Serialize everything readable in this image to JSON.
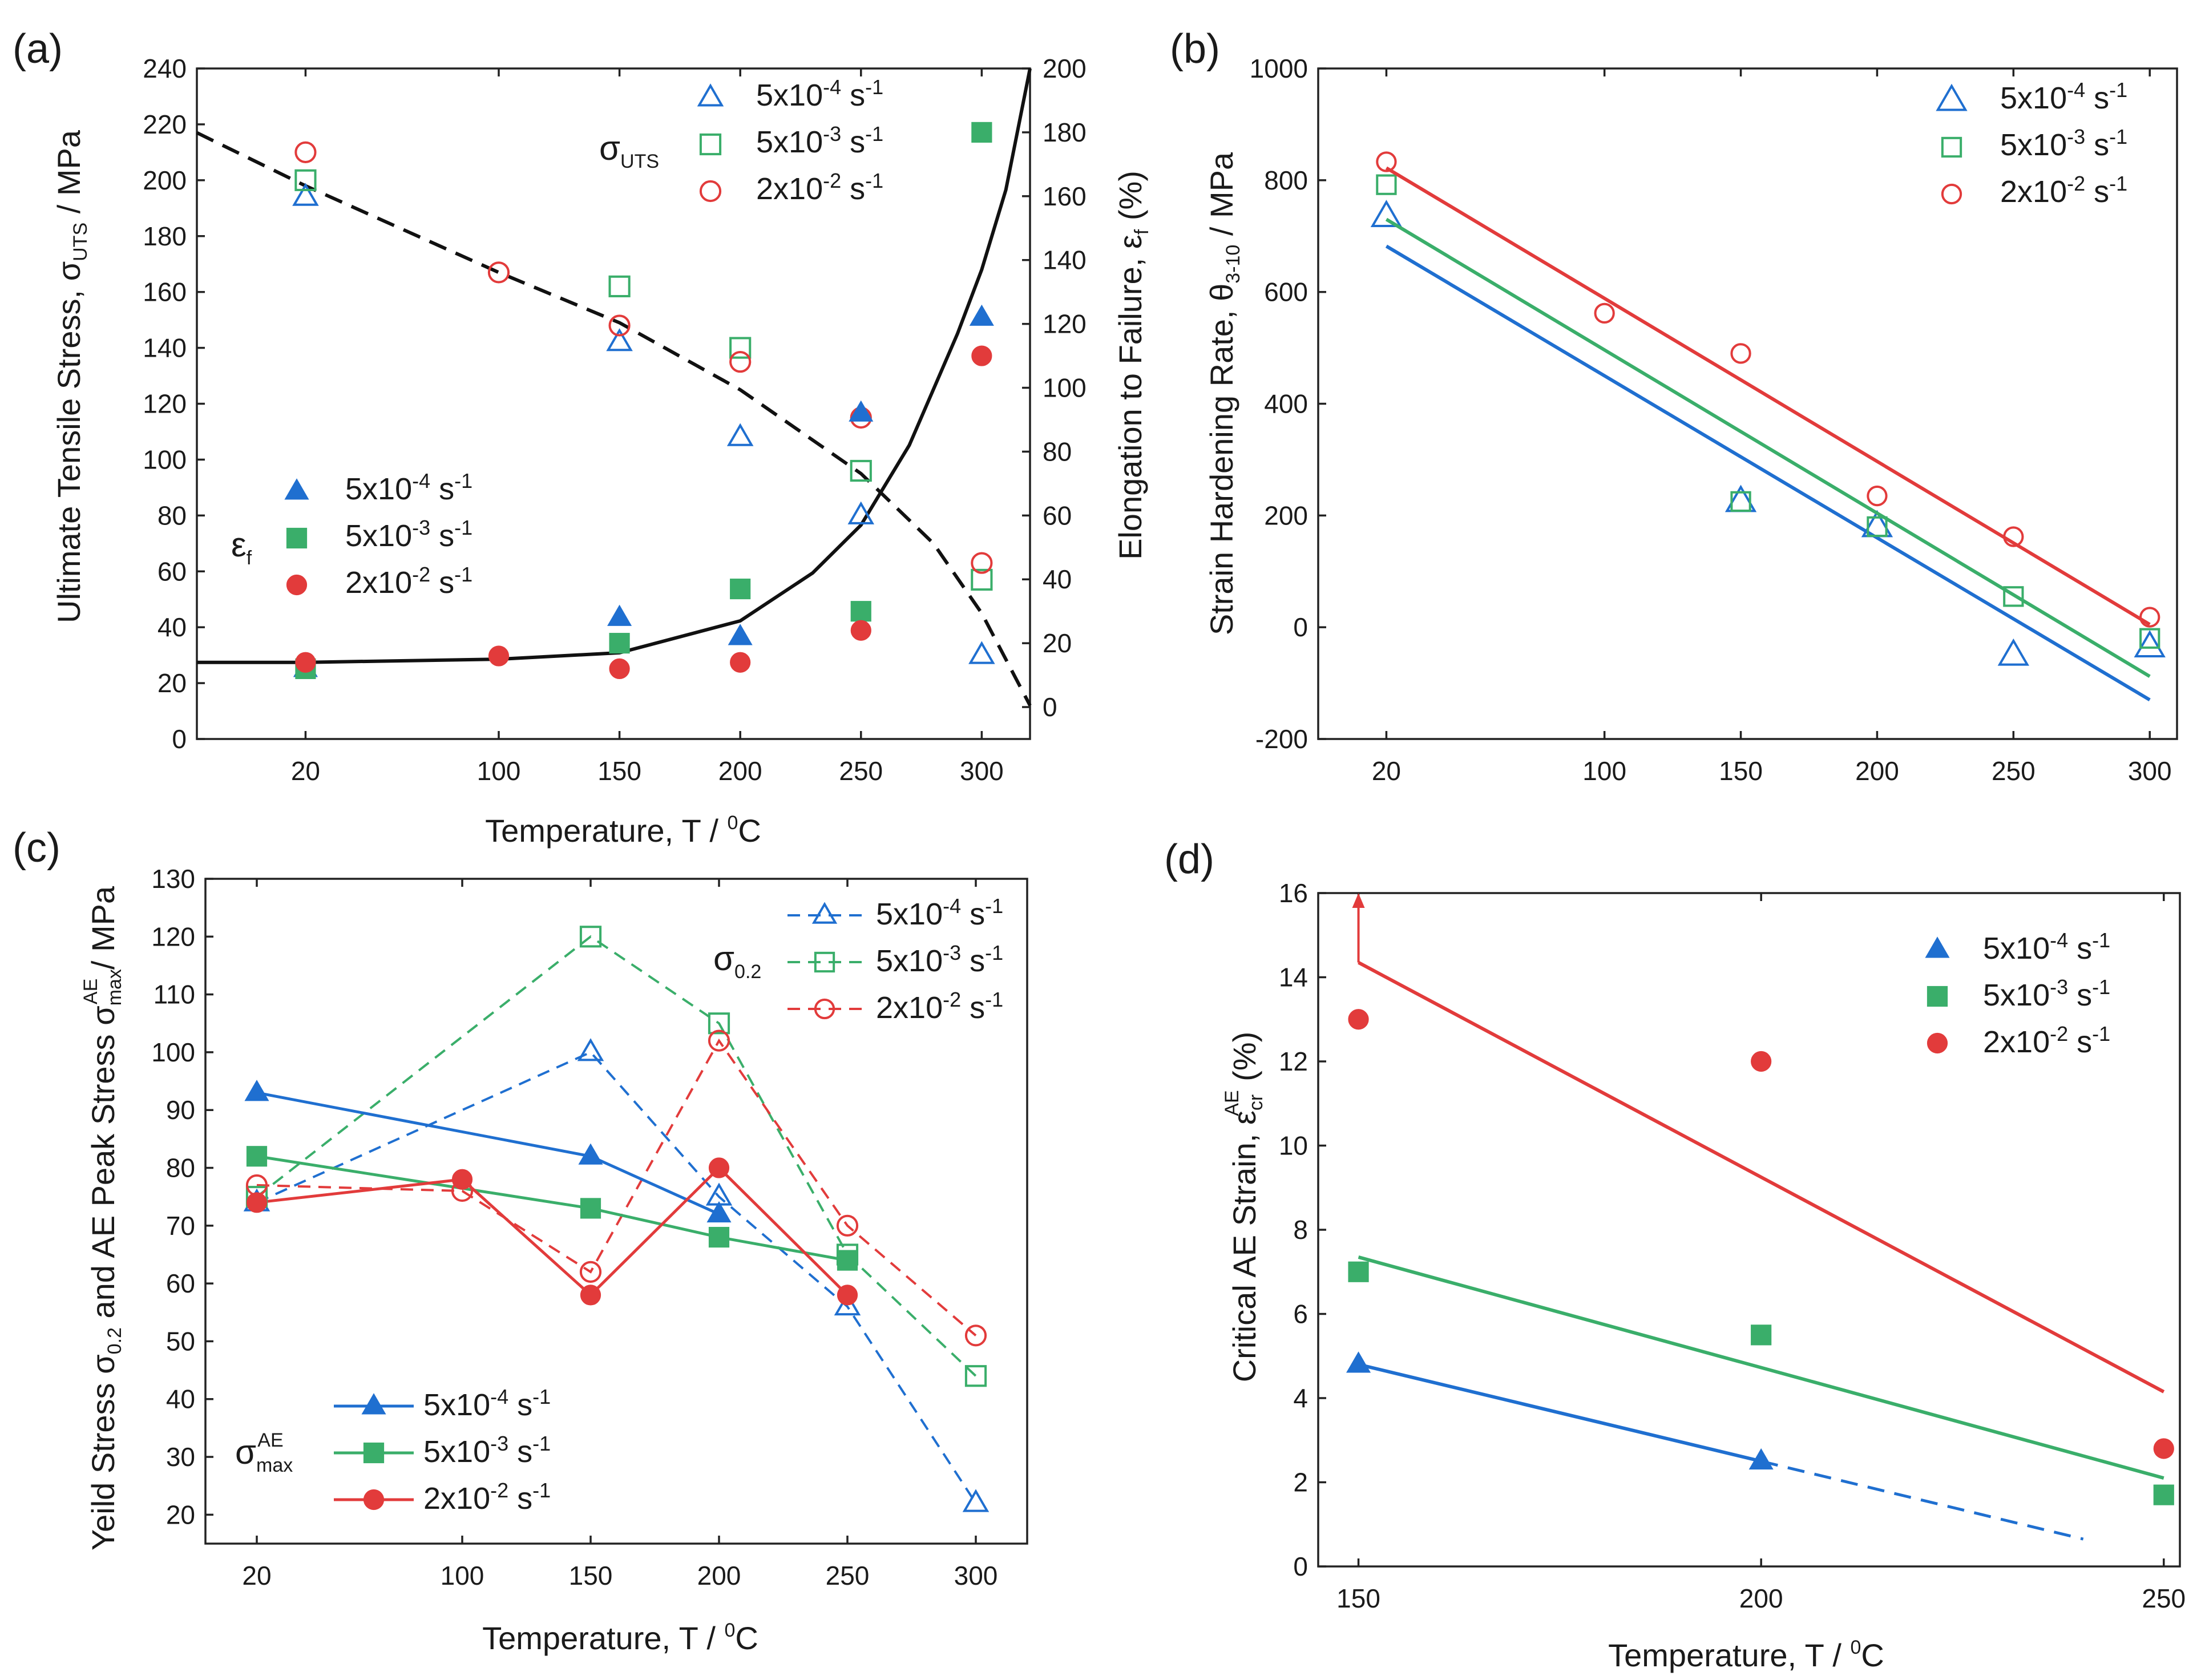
{
  "colors": {
    "blue": "#1F6FD0",
    "green": "#3AAE6A",
    "red": "#E23B3B",
    "black": "#111111",
    "frame": "#222222"
  },
  "chart_data": [
    {
      "panel": "(a)",
      "type": "scatter",
      "x_categories": [
        "20",
        "100",
        "150",
        "200",
        "250",
        "300"
      ],
      "x_positions": [
        20,
        100,
        150,
        200,
        250,
        300
      ],
      "xlabel": "Temperature, T / ⁰C",
      "ylabel_left": "Ultimate Tensile Stress, σUTS / MPa",
      "ylabel_right": "Elongation to Failure, εf (%)",
      "ylim_left": [
        0,
        240
      ],
      "yticks_left": [
        0,
        20,
        40,
        60,
        80,
        100,
        120,
        140,
        160,
        180,
        200,
        220,
        240
      ],
      "ylim_right": [
        -10,
        200
      ],
      "yticks_right": [
        0,
        20,
        40,
        60,
        80,
        100,
        120,
        140,
        160,
        180,
        200
      ],
      "xlim": [
        -25,
        320
      ],
      "legend_uts_label": "σUTS",
      "legend_ef_label": "εf",
      "uts_series": [
        {
          "name": "5x10⁻⁴ s⁻¹",
          "marker": "open-triangle",
          "color": "#1F6FD0",
          "x": [
            20,
            150,
            200,
            250,
            300
          ],
          "y": [
            194,
            142,
            108,
            80,
            30
          ]
        },
        {
          "name": "5x10⁻³ s⁻¹",
          "marker": "open-square",
          "color": "#3AAE6A",
          "x": [
            20,
            150,
            200,
            250,
            300
          ],
          "y": [
            200,
            162,
            140,
            96,
            57
          ]
        },
        {
          "name": "2x10⁻² s⁻¹",
          "marker": "open-circle",
          "color": "#E23B3B",
          "x": [
            20,
            100,
            150,
            200,
            250,
            300
          ],
          "y": [
            210,
            167,
            148,
            135,
            115,
            63
          ]
        }
      ],
      "ef_series": [
        {
          "name": "5x10⁻⁴ s⁻¹",
          "marker": "filled-triangle",
          "color": "#1F6FD0",
          "x": [
            20,
            150,
            200,
            250,
            300
          ],
          "y": [
            12,
            28,
            22,
            92,
            122
          ]
        },
        {
          "name": "5x10⁻³ s⁻¹",
          "marker": "filled-square",
          "color": "#3AAE6A",
          "x": [
            20,
            150,
            200,
            250,
            300
          ],
          "y": [
            12,
            20,
            37,
            30,
            180
          ]
        },
        {
          "name": "2x10⁻² s⁻¹",
          "marker": "filled-circle",
          "color": "#E23B3B",
          "x": [
            20,
            100,
            150,
            200,
            250,
            300
          ],
          "y": [
            14,
            16,
            12,
            14,
            24,
            110
          ]
        }
      ],
      "trend_uts_dashed": {
        "x": [
          -25,
          20,
          100,
          150,
          200,
          250,
          280,
          300,
          320
        ],
        "y": [
          217,
          198,
          167,
          149,
          125,
          95,
          70,
          45,
          12
        ]
      },
      "trend_ef_solid": {
        "x": [
          -25,
          20,
          100,
          150,
          200,
          230,
          250,
          270,
          290,
          300,
          310,
          320
        ],
        "y": [
          14,
          14,
          15,
          17,
          27,
          42,
          57,
          82,
          117,
          137,
          162,
          200
        ]
      }
    },
    {
      "panel": "(b)",
      "type": "scatter",
      "x_categories": [
        "20",
        "100",
        "150",
        "200",
        "250",
        "300"
      ],
      "x_positions": [
        20,
        100,
        150,
        200,
        250,
        300
      ],
      "xlabel": "",
      "ylabel": "Strain Hardening Rate, θ3-10 / MPa",
      "ylim": [
        -200,
        1000
      ],
      "yticks": [
        -200,
        0,
        200,
        400,
        600,
        800,
        1000
      ],
      "xlim": [
        -5,
        310
      ],
      "series": [
        {
          "name": "5x10⁻⁴ s⁻¹",
          "marker": "open-triangle",
          "color": "#1F6FD0",
          "x": [
            20,
            150,
            200,
            250,
            300
          ],
          "y": [
            735,
            225,
            180,
            -50,
            -35
          ],
          "fit": [
            [
              20,
              682
            ],
            [
              300,
              -130
            ]
          ]
        },
        {
          "name": "5x10⁻³ s⁻¹",
          "marker": "open-square",
          "color": "#3AAE6A",
          "x": [
            20,
            150,
            200,
            250,
            300
          ],
          "y": [
            792,
            225,
            180,
            55,
            -20
          ],
          "fit": [
            [
              20,
              730
            ],
            [
              300,
              -88
            ]
          ]
        },
        {
          "name": "2x10⁻² s⁻¹",
          "marker": "open-circle",
          "color": "#E23B3B",
          "x": [
            20,
            100,
            150,
            200,
            250,
            300
          ],
          "y": [
            833,
            562,
            490,
            235,
            162,
            18
          ],
          "fit": [
            [
              20,
              822
            ],
            [
              300,
              5
            ]
          ]
        }
      ]
    },
    {
      "panel": "(c)",
      "type": "line",
      "x_categories": [
        "20",
        "100",
        "150",
        "200",
        "250",
        "300"
      ],
      "x_positions": [
        20,
        100,
        150,
        200,
        250,
        300
      ],
      "xlabel": "Temperature, T / ⁰C",
      "ylabel": "Yeild Stress σ0.2 and AE Peak Stress σmaxAE / MPa",
      "ylim": [
        15,
        130
      ],
      "yticks": [
        20,
        30,
        40,
        50,
        60,
        70,
        80,
        90,
        100,
        110,
        120,
        130
      ],
      "xlim": [
        0,
        320
      ],
      "legend_sigma02_label": "σ0.2",
      "legend_sigmamax_label": "σmaxAE",
      "sigma02_series": [
        {
          "name": "5x10⁻⁴ s⁻¹",
          "marker": "open-triangle",
          "color": "#1F6FD0",
          "x": [
            20,
            150,
            200,
            250,
            300
          ],
          "y": [
            74,
            100,
            75,
            56,
            22
          ]
        },
        {
          "name": "5x10⁻³ s⁻¹",
          "marker": "open-square",
          "color": "#3AAE6A",
          "x": [
            20,
            150,
            200,
            250,
            300
          ],
          "y": [
            75,
            120,
            105,
            65,
            44
          ]
        },
        {
          "name": "2x10⁻² s⁻¹",
          "marker": "open-circle",
          "color": "#E23B3B",
          "x": [
            20,
            100,
            150,
            200,
            250,
            300
          ],
          "y": [
            77,
            76,
            62,
            102,
            70,
            51
          ]
        }
      ],
      "sigmamax_series": [
        {
          "name": "5x10⁻⁴ s⁻¹",
          "marker": "filled-triangle",
          "color": "#1F6FD0",
          "x": [
            20,
            150,
            200
          ],
          "y": [
            93,
            82,
            72
          ]
        },
        {
          "name": "5x10⁻³ s⁻¹",
          "marker": "filled-square",
          "color": "#3AAE6A",
          "x": [
            20,
            150,
            200,
            250
          ],
          "y": [
            82,
            73,
            68,
            64
          ]
        },
        {
          "name": "2x10⁻² s⁻¹",
          "marker": "filled-circle",
          "color": "#E23B3B",
          "x": [
            20,
            100,
            150,
            200,
            250
          ],
          "y": [
            74,
            78,
            58,
            80,
            58
          ]
        }
      ]
    },
    {
      "panel": "(d)",
      "type": "scatter",
      "x_categories": [
        "150",
        "200",
        "250"
      ],
      "x_positions": [
        150,
        200,
        250
      ],
      "xlabel": "Temperature, T / ⁰C",
      "ylabel": "Critical AE Strain, εcrAE (%)",
      "ylim": [
        0,
        16
      ],
      "yticks": [
        0,
        2,
        4,
        6,
        8,
        10,
        12,
        14,
        16
      ],
      "xlim": [
        145,
        252
      ],
      "series": [
        {
          "name": "5x10⁻⁴ s⁻¹",
          "marker": "filled-triangle",
          "color": "#1F6FD0",
          "x": [
            150,
            200
          ],
          "y": [
            4.8,
            2.5
          ],
          "fit": [
            [
              150,
              4.8
            ],
            [
              200,
              2.5
            ]
          ],
          "fit_ext": [
            [
              200,
              2.5
            ],
            [
              240,
              0.65
            ]
          ]
        },
        {
          "name": "5x10⁻³ s⁻¹",
          "marker": "filled-square",
          "color": "#3AAE6A",
          "x": [
            150,
            200,
            250
          ],
          "y": [
            7.0,
            5.5,
            1.7
          ],
          "fit": [
            [
              150,
              7.35
            ],
            [
              250,
              2.1
            ]
          ]
        },
        {
          "name": "2x10⁻² s⁻¹",
          "marker": "filled-circle",
          "color": "#E23B3B",
          "x": [
            150,
            200,
            250
          ],
          "y": [
            13.0,
            12.0,
            2.8
          ],
          "fit": [
            [
              150,
              14.35
            ],
            [
              250,
              4.15
            ]
          ],
          "arrow": [
            [
              150,
              14.35
            ],
            [
              150,
              16.0
            ]
          ]
        }
      ]
    }
  ]
}
